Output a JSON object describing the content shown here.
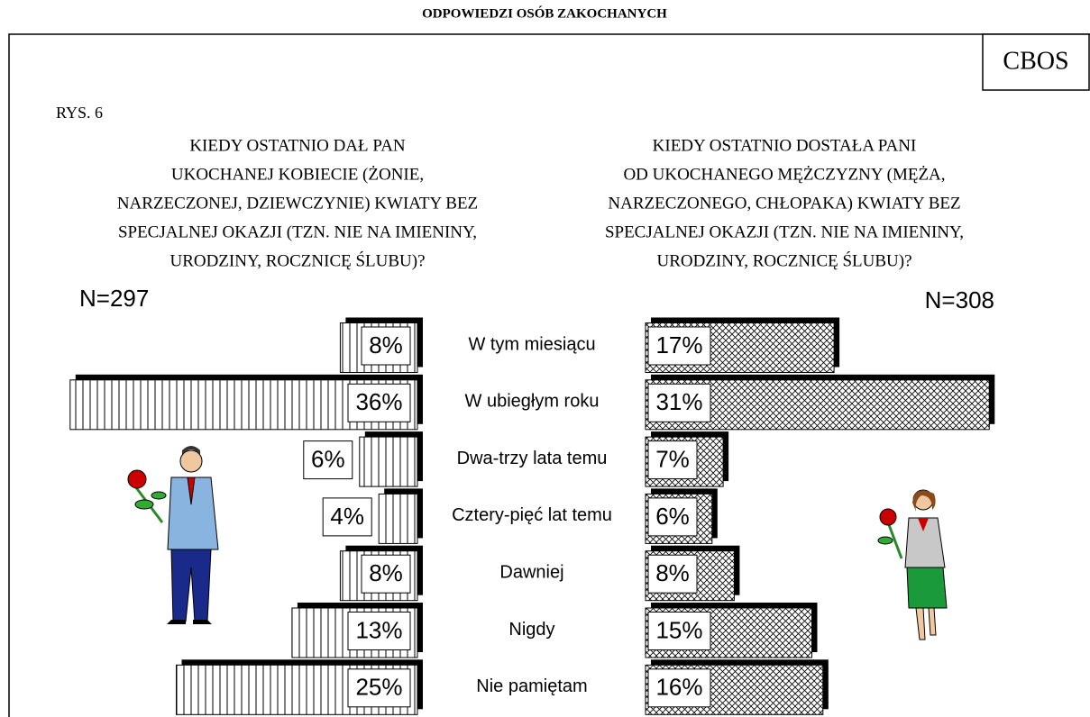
{
  "chart_data": {
    "type": "bar",
    "title": "ODPOWIEDZI OSÓB ZAKOCHANYCH",
    "source": "CBOS",
    "figure_label": "RYS. 6",
    "left_question": [
      "KIEDY OSTATNIO DAŁ PAN",
      "UKOCHANEJ KOBIECIE (ŻONIE,",
      "NARZECZONEJ, DZIEWCZYNIE) KWIATY BEZ",
      "SPECJALNEJ OKAZJI  (TZN. NIE NA IMIENINY,",
      "URODZINY, ROCZNICĘ ŚLUBU)?"
    ],
    "right_question": [
      "KIEDY OSTATNIO DOSTAŁA PANI",
      "OD UKOCHANEGO MĘŻCZYZNY (MĘŻA,",
      "NARZECZONEGO, CHŁOPAKA) KWIATY BEZ",
      "SPECJALNEJ OKAZJI (TZN. NIE NA IMIENINY,",
      "URODZINY, ROCZNICĘ ŚLUBU)?"
    ],
    "categories": [
      "W tym miesiącu",
      "W ubiegłym roku",
      "Dwa-trzy lata temu",
      "Cztery-pięć lat temu",
      "Dawniej",
      "Nigdy",
      "Nie pamiętam"
    ],
    "series": [
      {
        "name": "N=297",
        "color": "#000000",
        "values": [
          8,
          36,
          6,
          4,
          8,
          13,
          25
        ],
        "value_labels": [
          "8%",
          "36%",
          "6%",
          "4%",
          "8%",
          "13%",
          "25%"
        ]
      },
      {
        "name": "N=308",
        "color": "#000000",
        "values": [
          17,
          31,
          7,
          6,
          8,
          15,
          16
        ],
        "value_labels": [
          "17%",
          "31%",
          "7%",
          "6%",
          "8%",
          "15%",
          "16%"
        ]
      }
    ]
  }
}
